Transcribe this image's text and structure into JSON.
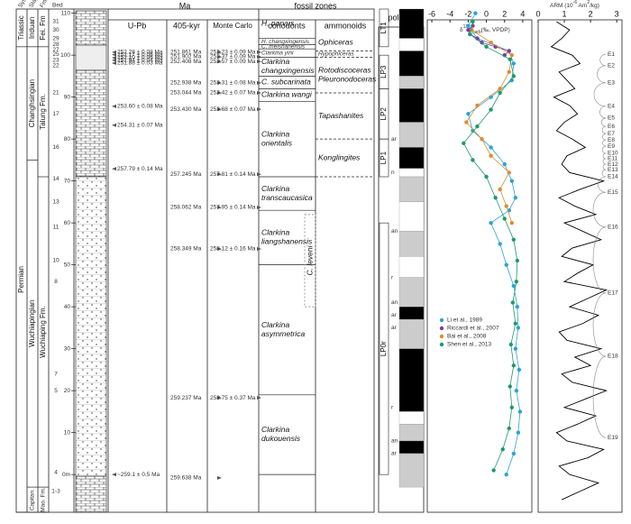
{
  "headers": {
    "system": "System",
    "stage": "Stage",
    "formation": "Fm.",
    "bed": "Bed",
    "ma": "Ma",
    "u_pb": "U-Pb",
    "kyr405": "405-kyr",
    "monte_carlo": "Monte Carlo",
    "fossil_zones": "fossil zones",
    "conodonts": "conodonts",
    "ammonoids": "ammonoids",
    "polarity": "polarity"
  },
  "depth_axis": {
    "lim": [
      -9,
      111
    ],
    "ticks": [
      {
        "value": 0,
        "label": "0m"
      },
      10,
      20,
      30,
      40,
      50,
      60,
      70,
      80,
      90,
      100,
      110
    ]
  },
  "stratigraphy": {
    "system": [
      {
        "name": "Triassic",
        "top": 111,
        "base": 102
      },
      {
        "name": "Permian",
        "top": 102,
        "base": -9
      }
    ],
    "stage": [
      {
        "name": "Induan",
        "top": 111,
        "base": 102
      },
      {
        "name": "Changhsingian",
        "top": 102,
        "base": 75
      },
      {
        "name": "Wuchiapingian",
        "top": 75,
        "base": -3
      },
      {
        "name": "Capitan.",
        "top": -3,
        "base": -9
      }
    ],
    "formation": [
      {
        "name": "Fei. Fm",
        "top": 111,
        "base": 102
      },
      {
        "name": "Talung Fm.",
        "top": 102,
        "base": 71
      },
      {
        "name": "Wuchiaping Fm.",
        "top": 71,
        "base": -3
      },
      {
        "name": "Mao. Fm.",
        "top": -3,
        "base": -9
      }
    ],
    "beds": [
      {
        "label": "31",
        "depth": 108
      },
      {
        "label": "30",
        "depth": 106
      },
      {
        "label": "29",
        "depth": 104
      },
      {
        "label": "28",
        "depth": 102.5
      },
      {
        "label": "27",
        "depth": 101.3
      },
      {
        "label": "25",
        "depth": 100.2
      },
      {
        "label": "23",
        "depth": 98.8
      },
      {
        "label": "22",
        "depth": 97.5
      },
      {
        "label": "21",
        "depth": 91
      },
      {
        "label": "17",
        "depth": 86
      },
      {
        "label": "16",
        "depth": 78
      },
      {
        "label": "14",
        "depth": 70.5
      },
      {
        "label": "13",
        "depth": 65
      },
      {
        "label": "11",
        "depth": 59
      },
      {
        "label": "10",
        "depth": 51
      },
      {
        "label": "8",
        "depth": 46
      },
      {
        "label": "7",
        "depth": 24
      },
      {
        "label": "5",
        "depth": 20
      },
      {
        "label": "4",
        "depth": 0.5
      },
      {
        "label": "1-3",
        "depth": -4
      }
    ]
  },
  "ages": {
    "u_pb": [
      {
        "label": "252.28 ± 0.08 Ma",
        "depth": 100.7
      },
      {
        "label": "252.17 ± 0.06 Ma",
        "depth": 100.1
      },
      {
        "label": "252.10 ± 0.06 Ma",
        "depth": 99.4
      },
      {
        "label": "251.94 ± 0.04 Ma",
        "depth": 98.8
      },
      {
        "label": "251.88 ± 0.03 Ma",
        "depth": 98.1
      },
      {
        "label": "253.60 ± 0.08 Ma",
        "depth": 87.8
      },
      {
        "label": "254.31 ± 0.07 Ma",
        "depth": 83.3
      },
      {
        "label": "257.79 ± 0.14 Ma",
        "depth": 72.9
      },
      {
        "label": "~259.1 ± 0.5 Ma",
        "depth": 0
      }
    ],
    "kyr405": [
      {
        "label": "251.861 Ma",
        "depth": 100.7
      },
      {
        "label": "251.902 Ma",
        "depth": 99.6
      },
      {
        "label": "252.408 Ma",
        "depth": 98.5
      },
      {
        "label": "252.938 Ma",
        "depth": 93.4
      },
      {
        "label": "253.044 Ma",
        "depth": 91
      },
      {
        "label": "253.430 Ma",
        "depth": 87.1
      },
      {
        "label": "257.245 Ma",
        "depth": 71.6
      },
      {
        "label": "258.062 Ma",
        "depth": 63.7
      },
      {
        "label": "258.349 Ma",
        "depth": 53.8
      },
      {
        "label": "259.237 Ma",
        "depth": 18.3
      },
      {
        "label": "259.638 Ma",
        "depth": -0.8
      }
    ],
    "monte_carlo": [
      {
        "label": "252.23 ± 0.09 Ma",
        "depth": 100.7
      },
      {
        "label": "252.37 ± 0.09 Ma",
        "depth": 99.6
      },
      {
        "label": "252.57 ± 0.09 Ma",
        "depth": 98.5
      },
      {
        "label": "253.31 ± 0.08 Ma",
        "depth": 93.4
      },
      {
        "label": "253.42 ± 0.07 Ma",
        "depth": 91
      },
      {
        "label": "253.68 ± 0.07 Ma",
        "depth": 87.1
      },
      {
        "label": "257.81 ± 0.14 Ma",
        "depth": 71.6
      },
      {
        "label": "257.95 ± 0.14 Ma",
        "depth": 63.7
      },
      {
        "label": "258.12 ± 0.16 Ma",
        "depth": 53.8
      },
      {
        "label": "258.75 ± 0.37 Ma",
        "depth": 18.3
      }
    ]
  },
  "fossils": {
    "conodonts": [
      {
        "lines": [
          "H. parvus"
        ],
        "top": 111,
        "base": 104
      },
      {
        "lines": [
          "H. changxingensis"
        ],
        "top": 104,
        "base": 102.5
      },
      {
        "lines": [
          "C. meishanensis"
        ],
        "top": 102.5,
        "base": 101.5
      },
      {
        "lines": [
          "Clarkina yini"
        ],
        "top": 101.5,
        "base": 99.5
      },
      {
        "lines": [
          "Clarkina",
          "changxingensis"
        ],
        "top": 99.5,
        "base": 95
      },
      {
        "lines": [
          "C. subcarinata"
        ],
        "top": 95,
        "base": 92
      },
      {
        "lines": [
          "Clarkina wangi"
        ],
        "top": 92,
        "base": 89
      },
      {
        "lines": [
          "Clarkina",
          "orientalis"
        ],
        "top": 89,
        "base": 71
      },
      {
        "lines": [
          "Clarkina",
          "transcaucasica"
        ],
        "top": 71,
        "base": 63
      },
      {
        "lines": [
          "Clarkina",
          "liangshanensis"
        ],
        "top": 63,
        "base": 50
      },
      {
        "lines": [
          "Clarkina",
          "asymmetrica"
        ],
        "top": 50,
        "base": 19
      },
      {
        "lines": [
          "Clarkina",
          "dukouensis"
        ],
        "top": 19,
        "base": 0
      }
    ],
    "c_leveni": {
      "label": "C. leveni",
      "top": 62,
      "base": 40
    },
    "ammonoids": [
      {
        "lines": [
          "Ophiceras"
        ],
        "top": 105,
        "base": 101
      },
      {
        "lines": [
          "Hypophiceras"
        ],
        "top": 101,
        "base": 99.5
      },
      {
        "lines": [
          "Rotodiscoceras",
          "Pleuronodoceras"
        ],
        "top": 99.5,
        "base": 91
      },
      {
        "lines": [
          "Tapashanites"
        ],
        "top": 91,
        "base": 80
      },
      {
        "lines": [
          "Konglingites"
        ],
        "top": 80,
        "base": 71
      }
    ]
  },
  "polarity": {
    "zones": [
      {
        "label": "LT1",
        "top": 111,
        "base": 102
      },
      {
        "label": "LP3",
        "top": 100,
        "base": 92
      },
      {
        "label": "LP2",
        "top": 92,
        "base": 80
      },
      {
        "label": "LP1",
        "top": 80,
        "base": 71
      },
      {
        "label": "LP0r",
        "top": 60,
        "base": 0
      }
    ],
    "blocks": [
      {
        "top": 111,
        "base": 104,
        "fill": "#000"
      },
      {
        "top": 104,
        "base": 101,
        "fill": "#fff"
      },
      {
        "top": 101,
        "base": 95,
        "fill": "#000"
      },
      {
        "top": 95,
        "base": 92,
        "fill": "#ccc"
      },
      {
        "top": 92,
        "base": 84,
        "fill": "#000"
      },
      {
        "top": 84,
        "base": 78,
        "fill": "#ccc"
      },
      {
        "top": 78,
        "base": 73,
        "fill": "#000"
      },
      {
        "top": 73,
        "base": 71,
        "fill": "#fff"
      },
      {
        "top": 71,
        "base": 65,
        "fill": "#ccc"
      },
      {
        "top": 65,
        "base": 58,
        "fill": "#fff"
      },
      {
        "top": 58,
        "base": 52,
        "fill": "#ccc"
      },
      {
        "top": 52,
        "base": 47,
        "fill": "#fff"
      },
      {
        "top": 47,
        "base": 40,
        "fill": "#ccc"
      },
      {
        "top": 40,
        "base": 37,
        "fill": "#000"
      },
      {
        "top": 37,
        "base": 30,
        "fill": "#ccc"
      },
      {
        "top": 30,
        "base": 15,
        "fill": "#000"
      },
      {
        "top": 15,
        "base": 12,
        "fill": "#fff"
      },
      {
        "top": 12,
        "base": 8,
        "fill": "#ccc"
      },
      {
        "top": 8,
        "base": 5,
        "fill": "#000"
      },
      {
        "top": 5,
        "base": -3,
        "fill": "#ccc"
      }
    ],
    "marks": [
      {
        "label": "ar",
        "depth": 80
      },
      {
        "label": "n",
        "depth": 72
      },
      {
        "label": "an",
        "depth": 58
      },
      {
        "label": "r",
        "depth": 47
      },
      {
        "label": "an",
        "depth": 41
      },
      {
        "label": "ar",
        "depth": 38
      },
      {
        "label": "ar",
        "depth": 35
      },
      {
        "label": "r",
        "depth": 16
      },
      {
        "label": "an",
        "depth": 8
      },
      {
        "label": "ar",
        "depth": 5
      }
    ]
  },
  "isotope": {
    "title_parts": [
      "δ",
      "13",
      "C",
      "carb",
      "(‰, VPDP)"
    ],
    "xlim": [
      -6.5,
      5
    ],
    "xticks": [
      -6,
      -4,
      -2,
      0,
      2,
      4
    ],
    "series": [
      {
        "name": "Li et al., 1989",
        "color": "#2ba3d8",
        "depth": [
          0,
          5,
          10,
          15,
          20,
          25,
          30,
          35,
          40,
          45,
          50,
          55,
          60,
          63,
          66,
          70,
          74,
          78,
          82,
          86,
          90,
          94,
          98,
          101,
          104,
          107,
          110
        ],
        "values": [
          2.2,
          3.0,
          3.5,
          3.7,
          3.3,
          3.6,
          3.2,
          3.5,
          3.4,
          3.0,
          2.2,
          1.5,
          0.5,
          2.5,
          3.2,
          2.8,
          2.0,
          0.5,
          -1.5,
          -2.0,
          0.5,
          2.8,
          3.0,
          2.5,
          -1.0,
          -2.0,
          -1.2
        ]
      },
      {
        "name": "Riccardi et al., 2007",
        "color": "#7b3f98",
        "depth": [
          100,
          101,
          102,
          103,
          104,
          105,
          106,
          107
        ],
        "values": [
          2.0,
          2.5,
          1.0,
          -0.5,
          -1.0,
          -1.8,
          -2.0,
          -1.5
        ]
      },
      {
        "name": "Bai et al., 2008",
        "color": "#e08a30",
        "depth": [
          60,
          64,
          68,
          72,
          76,
          80,
          84,
          88,
          92,
          96,
          100,
          103,
          106
        ],
        "values": [
          2.8,
          2.2,
          1.5,
          2.5,
          0.5,
          -0.5,
          -2.2,
          -1.0,
          1.5,
          2.5,
          2.8,
          0.5,
          -1.6
        ]
      },
      {
        "name": "Shen et al., 2013",
        "color": "#1e9a6a",
        "depth": [
          1,
          6,
          11,
          16,
          21,
          26,
          31,
          36,
          41,
          46,
          51,
          56,
          61,
          66,
          71,
          75,
          79,
          83,
          87,
          91,
          95,
          99,
          102,
          105,
          108
        ],
        "values": [
          0.8,
          1.8,
          2.5,
          2.8,
          2.6,
          3.0,
          2.7,
          3.2,
          2.9,
          3.3,
          3.4,
          3.0,
          2.0,
          1.0,
          0.0,
          -1.5,
          -2.5,
          -1.0,
          0.5,
          1.5,
          3.0,
          2.6,
          0.0,
          -1.8,
          -1.5
        ]
      }
    ]
  },
  "arm": {
    "title_parts": [
      "ARM (10",
      "-6",
      " Am",
      "2",
      "/kg)"
    ],
    "xlim": [
      0,
      3.2
    ],
    "xticks": [
      0,
      1,
      2,
      3
    ],
    "color": "#000",
    "depth": [
      -6,
      -4,
      -2,
      0,
      2,
      4,
      6,
      8,
      10,
      12,
      14,
      16,
      18,
      20,
      22,
      24,
      26,
      28,
      30,
      32,
      34,
      36,
      38,
      40,
      42,
      44,
      46,
      48,
      50,
      52,
      54,
      56,
      58,
      60,
      62,
      64,
      66,
      68,
      70,
      72,
      74,
      76,
      78,
      80,
      82,
      84,
      86,
      88,
      90,
      92,
      94,
      96,
      98,
      100,
      102,
      104,
      106,
      108
    ],
    "values": [
      0.9,
      1.6,
      2.3,
      1.2,
      0.8,
      1.9,
      2.5,
      1.1,
      0.7,
      1.5,
      2.2,
      1.0,
      1.8,
      2.6,
      1.3,
      0.9,
      2.0,
      1.4,
      2.4,
      1.1,
      0.8,
      1.7,
      2.3,
      1.2,
      1.9,
      2.6,
      1.0,
      1.5,
      2.1,
      0.9,
      1.3,
      2.4,
      1.7,
      1.0,
      2.2,
      1.4,
      0.8,
      1.6,
      2.5,
      1.2,
      0.9,
      1.1,
      1.8,
      1.3,
      0.7,
      1.0,
      1.5,
      1.2,
      0.6,
      1.4,
      1.1,
      0.8,
      1.6,
      1.3,
      0.5,
      0.9,
      1.2,
      0.7
    ],
    "cycles": [
      {
        "label": "E1",
        "depth": 100.2
      },
      {
        "label": "E2",
        "depth": 97.5
      },
      {
        "label": "E3",
        "depth": 93.4
      },
      {
        "label": "E4",
        "depth": 87.8
      },
      {
        "label": "E5",
        "depth": 85
      },
      {
        "label": "E6",
        "depth": 83
      },
      {
        "label": "E7",
        "depth": 81.3
      },
      {
        "label": "E8",
        "depth": 79.8
      },
      {
        "label": "E9",
        "depth": 78.3
      },
      {
        "label": "E10",
        "depth": 76.6
      },
      {
        "label": "E11",
        "depth": 75.3
      },
      {
        "label": "E12",
        "depth": 74
      },
      {
        "label": "E13",
        "depth": 72.7
      },
      {
        "label": "E14",
        "depth": 71
      },
      {
        "label": "E15",
        "depth": 67.3
      },
      {
        "label": "E16",
        "depth": 59
      },
      {
        "label": "E17",
        "depth": 43.3
      },
      {
        "label": "E18",
        "depth": 28.2
      },
      {
        "label": "E19",
        "depth": 8.8
      }
    ]
  }
}
